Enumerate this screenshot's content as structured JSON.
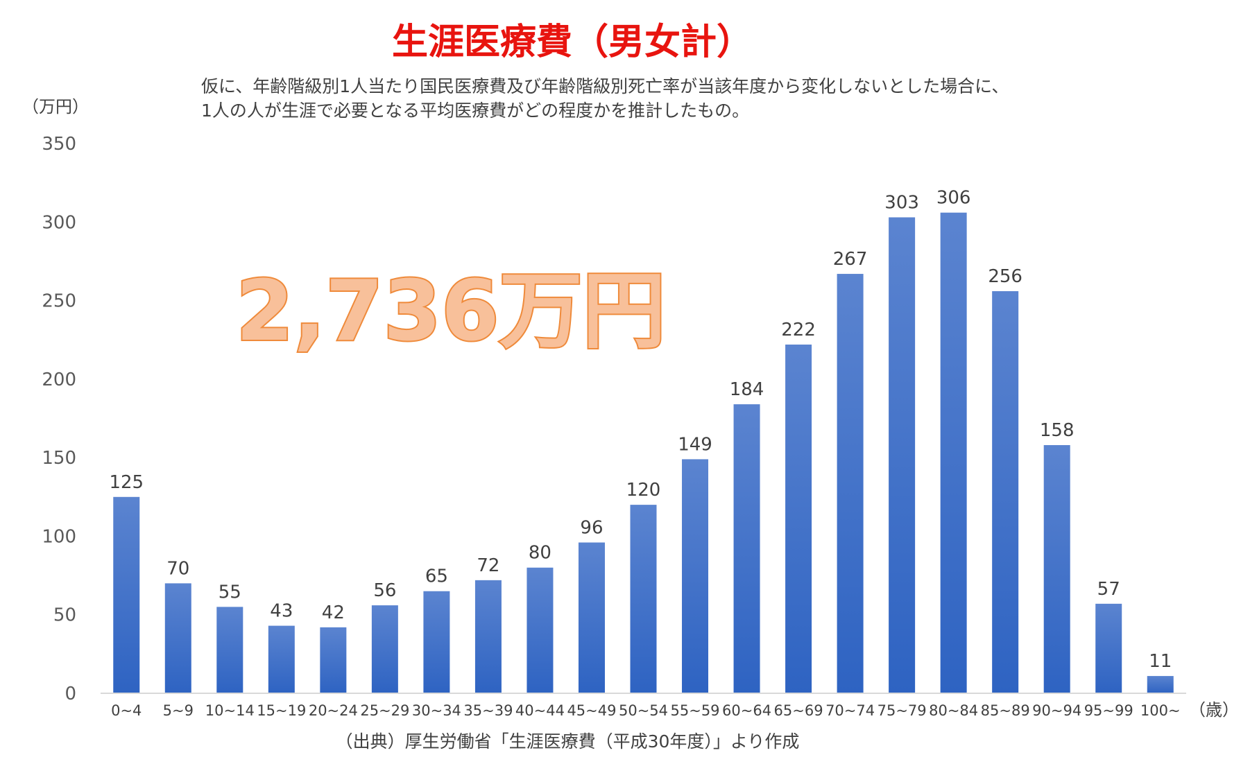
{
  "title": "生涯医療費（男女計）",
  "description": [
    "仮に、年齢階級別1人当たり国民医療費及び年齢階級別死亡率が当該年度から変化しないとした場合に、",
    "1人の人が生涯で必要となる平均医療費がどの程度かを推計したもの。"
  ],
  "highlight": "2,736万円",
  "source": "（出典）厚生労働省「生涯医療費（平成30年度）」より作成",
  "colors": {
    "bar_top": "#5b84d0",
    "bar_bottom": "#2e63c2",
    "title": "#e8140f",
    "highlight_fill": "#f8c09a",
    "highlight_stroke": "#ef8a3a"
  },
  "chart_data": {
    "type": "bar",
    "title": "生涯医療費（男女計）",
    "ylabel": "（万円）",
    "xlabel": "（歳）",
    "ylim": [
      0,
      350
    ],
    "yticks": [
      0,
      50,
      100,
      150,
      200,
      250,
      300,
      350
    ],
    "grid": false,
    "categories": [
      "0~4",
      "5~9",
      "10~14",
      "15~19",
      "20~24",
      "25~29",
      "30~34",
      "35~39",
      "40~44",
      "45~49",
      "50~54",
      "55~59",
      "60~64",
      "65~69",
      "70~74",
      "75~79",
      "80~84",
      "85~89",
      "90~94",
      "95~99",
      "100~"
    ],
    "values": [
      125,
      70,
      55,
      43,
      42,
      56,
      65,
      72,
      80,
      96,
      120,
      149,
      184,
      222,
      267,
      303,
      306,
      256,
      158,
      57,
      11
    ]
  }
}
